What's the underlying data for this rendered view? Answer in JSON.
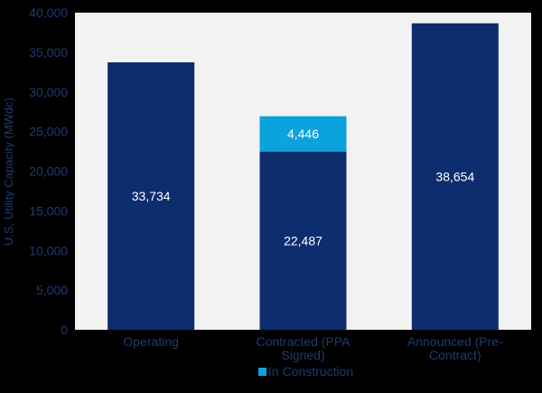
{
  "chart_data": {
    "type": "bar",
    "stacked": true,
    "categories": [
      "Operating",
      "Contracted (PPA\nSigned)",
      "Announced (Pre-\nContract)"
    ],
    "series": [
      {
        "name": "",
        "values": [
          33734,
          22487,
          38654
        ],
        "color": "#0d2d6e",
        "label_color": "#ffffff"
      },
      {
        "name": "In Construction",
        "values": [
          0,
          4446,
          0
        ],
        "color": "#0aa3dc",
        "label_color": "#ffffff"
      }
    ],
    "data_labels": [
      [
        "33,734",
        "22,487",
        "38,654"
      ],
      [
        "",
        "4,446",
        ""
      ]
    ],
    "ylabel": "U.S. Utility Capacity (MWdc)",
    "ylim": [
      0,
      40000
    ],
    "yticks": [
      0,
      5000,
      10000,
      15000,
      20000,
      25000,
      30000,
      35000,
      40000
    ],
    "ytick_labels": [
      "0",
      "5,000",
      "10,000",
      "15,000",
      "20,000",
      "25,000",
      "30,000",
      "35,000",
      "40,000"
    ],
    "grid": false,
    "legend_placement": "bottom-center",
    "plot_background": "#f2f2f2",
    "page_background": "#000000",
    "axis_text_color": "#1f3b6e"
  }
}
